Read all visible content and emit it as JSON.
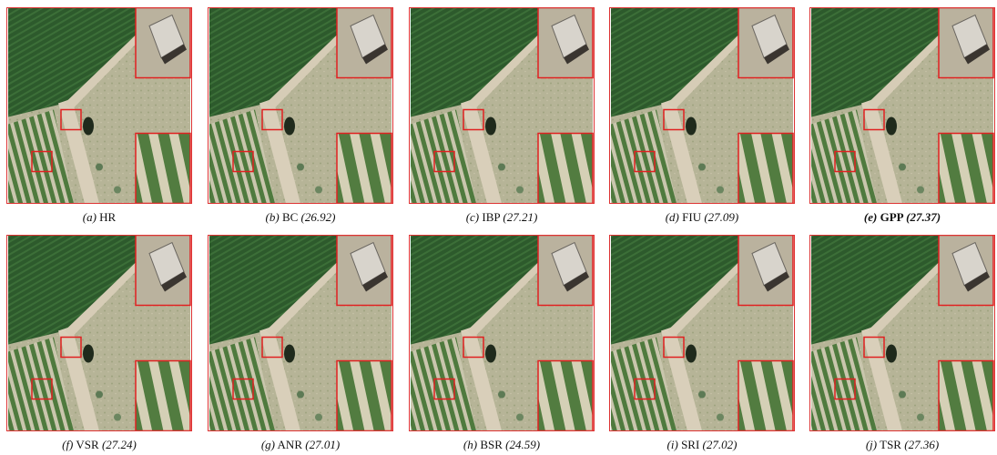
{
  "panels": [
    {
      "tag": "(a)",
      "method": "HR"
    },
    {
      "tag": "(b)",
      "method": "BC",
      "score": "(26.92)"
    },
    {
      "tag": "(c)",
      "method": "IBP",
      "score": "(27.21)"
    },
    {
      "tag": "(d)",
      "method": "FIU",
      "score": "(27.09)"
    },
    {
      "tag": "(e)",
      "method": "GPP",
      "score": "(27.37)",
      "bold": true
    },
    {
      "tag": "(f)",
      "method": "VSR",
      "score": "(27.24)"
    },
    {
      "tag": "(g)",
      "method": "ANR",
      "score": "(27.01)"
    },
    {
      "tag": "(h)",
      "method": "BSR",
      "score": "(24.59)"
    },
    {
      "tag": "(i)",
      "method": "SRI",
      "score": "(27.02)"
    },
    {
      "tag": "(j)",
      "method": "TSR",
      "score": "(27.36)"
    }
  ]
}
